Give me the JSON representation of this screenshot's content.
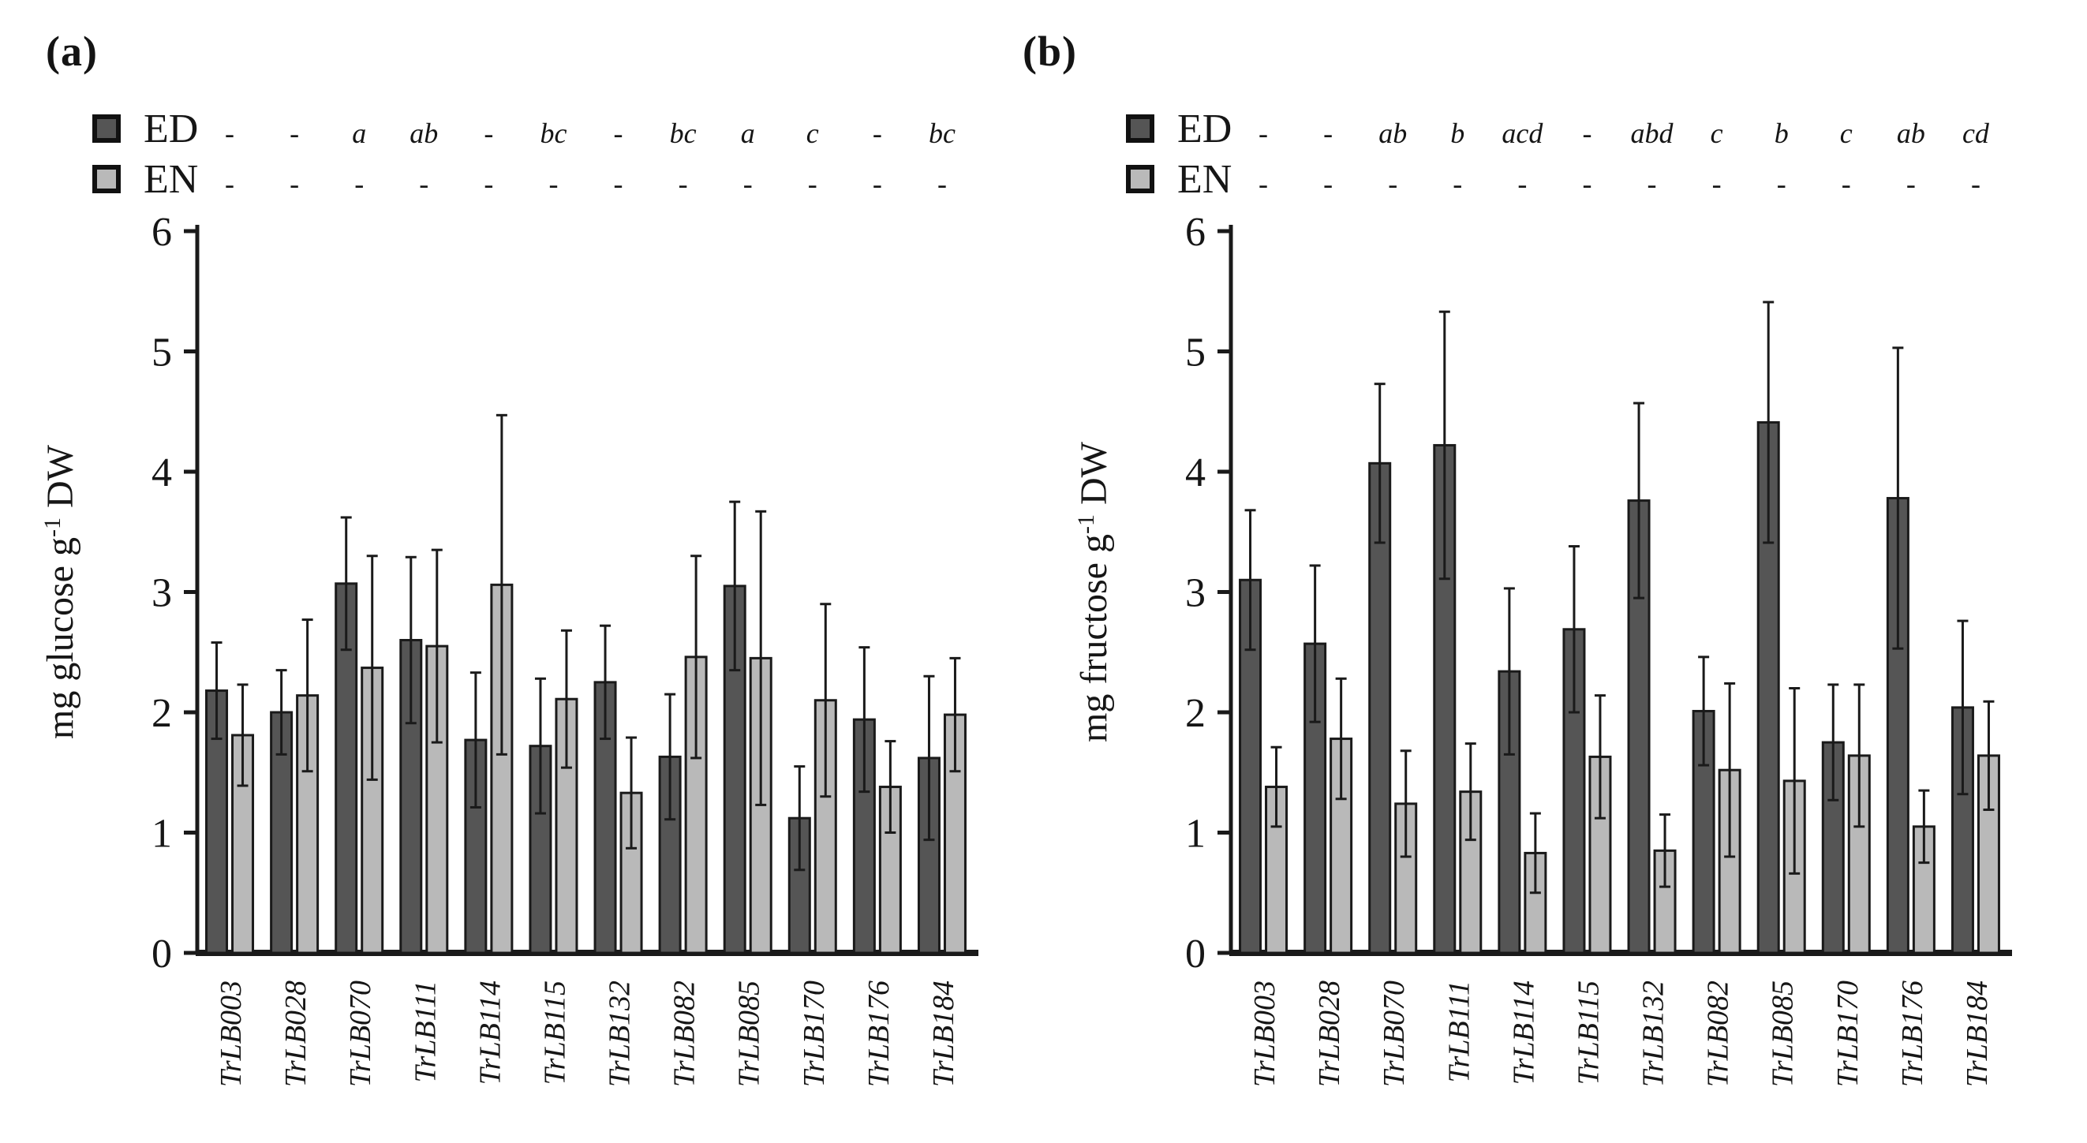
{
  "figure": {
    "panel_a_label": "(a)",
    "panel_b_label": "(b)"
  },
  "colors": {
    "ed_fill": "#555555",
    "en_fill": "#b9b9b9",
    "outline": "#1a1a1a",
    "text": "#161616",
    "background": "#ffffff"
  },
  "chart_data": [
    {
      "type": "bar",
      "panel_label": "(a)",
      "title": "",
      "xlabel": "",
      "ylabel": "mg glucose g⁻¹ DW",
      "ylabel_parts": {
        "base": "mg glucose g",
        "sup": "-1",
        "rest": " DW"
      },
      "ylim": [
        0,
        6
      ],
      "yticks": [
        0,
        1,
        2,
        3,
        4,
        5,
        6
      ],
      "grid": false,
      "legend_position": "top-left",
      "categories": [
        "TrLB003",
        "TrLB028",
        "TrLB070",
        "TrLB111",
        "TrLB114",
        "TrLB115",
        "TrLB132",
        "TrLB082",
        "TrLB085",
        "TrLB170",
        "TrLB176",
        "TrLB184"
      ],
      "series": [
        {
          "name": "ED",
          "values": [
            2.18,
            2.0,
            3.07,
            2.6,
            1.77,
            1.72,
            2.25,
            1.63,
            3.05,
            1.12,
            1.94,
            1.62
          ],
          "errors": [
            0.4,
            0.35,
            0.55,
            0.69,
            0.56,
            0.56,
            0.47,
            0.52,
            0.7,
            0.43,
            0.6,
            0.68
          ],
          "letters": [
            "-",
            "-",
            "a",
            "ab",
            "-",
            "bc",
            "-",
            "bc",
            "a",
            "c",
            "-",
            "bc"
          ]
        },
        {
          "name": "EN",
          "values": [
            1.81,
            2.14,
            2.37,
            2.55,
            3.06,
            2.11,
            1.33,
            2.46,
            2.45,
            2.1,
            1.38,
            1.98
          ],
          "errors": [
            0.42,
            0.63,
            0.93,
            0.8,
            1.41,
            0.57,
            0.46,
            0.84,
            1.22,
            0.8,
            0.38,
            0.47
          ]
        }
      ]
    },
    {
      "type": "bar",
      "panel_label": "(b)",
      "title": "",
      "xlabel": "",
      "ylabel": "mg fructose g⁻¹ DW",
      "ylabel_parts": {
        "base": "mg fructose g",
        "sup": "-1",
        "rest": " DW"
      },
      "ylim": [
        0,
        6
      ],
      "yticks": [
        0,
        1,
        2,
        3,
        4,
        5,
        6
      ],
      "grid": false,
      "legend_position": "top-left",
      "categories": [
        "TrLB003",
        "TrLB028",
        "TrLB070",
        "TrLB111",
        "TrLB114",
        "TrLB115",
        "TrLB132",
        "TrLB082",
        "TrLB085",
        "TrLB170",
        "TrLB176",
        "TrLB184"
      ],
      "series": [
        {
          "name": "ED",
          "values": [
            3.1,
            2.57,
            4.07,
            4.22,
            2.34,
            2.69,
            3.76,
            2.01,
            4.41,
            1.75,
            3.78,
            2.04
          ],
          "errors": [
            0.58,
            0.65,
            0.66,
            1.11,
            0.69,
            0.69,
            0.81,
            0.45,
            1.0,
            0.48,
            1.25,
            0.72
          ],
          "letters": [
            "-",
            "-",
            "ab",
            "b",
            "acd",
            "-",
            "abd",
            "c",
            "b",
            "c",
            "ab",
            "cd"
          ]
        },
        {
          "name": "EN",
          "values": [
            1.38,
            1.78,
            1.24,
            1.34,
            0.83,
            1.63,
            0.85,
            1.52,
            1.43,
            1.64,
            1.05,
            1.64
          ],
          "errors": [
            0.33,
            0.5,
            0.44,
            0.4,
            0.33,
            0.51,
            0.3,
            0.72,
            0.77,
            0.59,
            0.3,
            0.45
          ]
        }
      ]
    }
  ],
  "en_letters_note": "-"
}
